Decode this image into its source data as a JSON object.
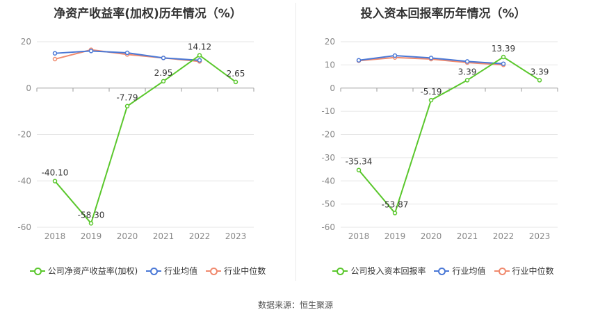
{
  "chart_data": [
    {
      "type": "line",
      "title": "净资产收益率(加权)历年情况（%）",
      "categories": [
        "2018",
        "2019",
        "2020",
        "2021",
        "2022",
        "2023"
      ],
      "ylim": [
        -60,
        20
      ],
      "yticks": [
        20,
        0,
        -20,
        -40,
        -60
      ],
      "grid": true,
      "legend_position": "bottom",
      "series": [
        {
          "name": "公司净资产收益率(加权)",
          "color": "#5ac72c",
          "labels": true,
          "values": [
            -40.1,
            -58.3,
            -7.79,
            2.95,
            14.12,
            2.65
          ]
        },
        {
          "name": "行业均值",
          "color": "#4a78d6",
          "labels": false,
          "values": [
            15.0,
            16.0,
            15.2,
            13.0,
            12.0,
            null
          ]
        },
        {
          "name": "行业中位数",
          "color": "#f08a6e",
          "labels": false,
          "values": [
            12.5,
            16.5,
            14.5,
            13.0,
            11.5,
            null
          ]
        }
      ]
    },
    {
      "type": "line",
      "title": "投入资本回报率历年情况（%）",
      "categories": [
        "2018",
        "2019",
        "2020",
        "2021",
        "2022",
        "2023"
      ],
      "ylim": [
        -60,
        20
      ],
      "yticks": [
        20,
        10,
        0,
        -10,
        -20,
        -30,
        -40,
        -50,
        -60
      ],
      "grid": true,
      "legend_position": "bottom",
      "series": [
        {
          "name": "公司投入资本回报率",
          "color": "#5ac72c",
          "labels": true,
          "values": [
            -35.34,
            -53.87,
            -5.19,
            3.39,
            13.39,
            3.39
          ]
        },
        {
          "name": "行业均值",
          "color": "#4a78d6",
          "labels": false,
          "values": [
            12.0,
            14.0,
            13.0,
            11.5,
            10.5,
            null
          ]
        },
        {
          "name": "行业中位数",
          "color": "#f08a6e",
          "labels": false,
          "values": [
            11.8,
            13.2,
            12.5,
            11.0,
            10.0,
            null
          ]
        }
      ]
    }
  ],
  "source_text": "数据来源：恒生聚源"
}
